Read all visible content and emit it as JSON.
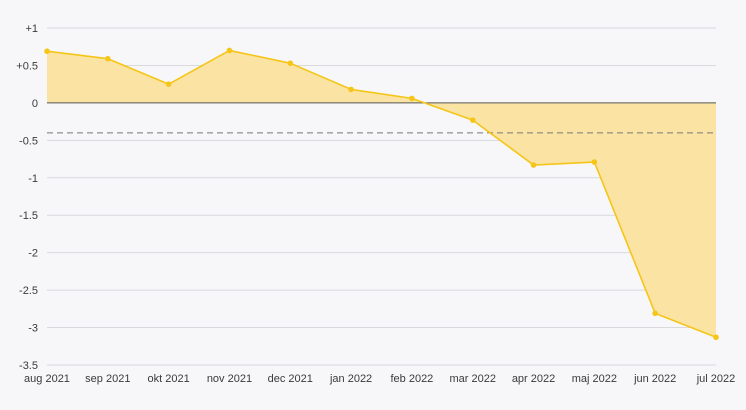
{
  "chart_data": {
    "type": "area",
    "x": [
      "aug 2021",
      "sep 2021",
      "okt 2021",
      "nov 2021",
      "dec 2021",
      "jan 2022",
      "feb 2022",
      "mar 2022",
      "apr 2022",
      "maj 2022",
      "jun 2022",
      "jul 2022"
    ],
    "series": [
      {
        "values": [
          0.69,
          0.59,
          0.25,
          0.7,
          0.53,
          0.18,
          0.06,
          -0.23,
          -0.83,
          -0.79,
          -2.81,
          -3.13
        ]
      }
    ],
    "reference_line": {
      "value": -0.4,
      "style": "dashed"
    },
    "zero_line": true,
    "ylim": [
      -3.5,
      1
    ],
    "yticks": [
      {
        "value": 1,
        "label": "+1"
      },
      {
        "value": 0.5,
        "label": "+0.5"
      },
      {
        "value": 0,
        "label": "0"
      },
      {
        "value": -0.5,
        "label": "-0.5"
      },
      {
        "value": -1,
        "label": "-1"
      },
      {
        "value": -1.5,
        "label": "-1.5"
      },
      {
        "value": -2,
        "label": "-2"
      },
      {
        "value": -2.5,
        "label": "-2.5"
      },
      {
        "value": -3,
        "label": "-3"
      },
      {
        "value": -3.5,
        "label": "-3.5"
      }
    ],
    "grid": true,
    "colors": {
      "line": "#f5c518",
      "fill": "#fbe3a4",
      "grid": "#d9d9de",
      "zero": "#555555",
      "reference": "#777777"
    }
  }
}
